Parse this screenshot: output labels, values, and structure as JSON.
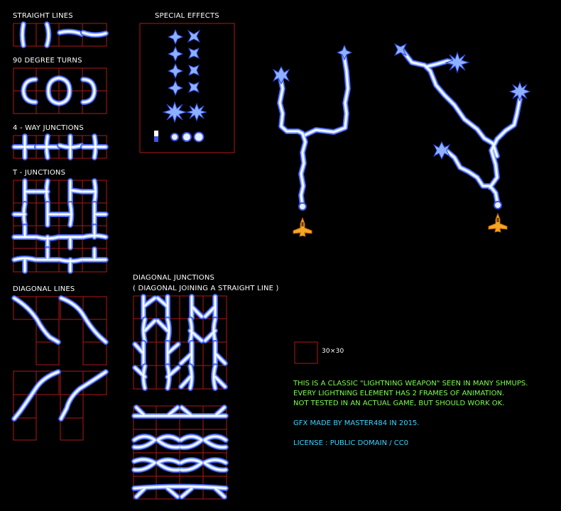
{
  "sections": {
    "straight_lines": "STRAIGHT LINES",
    "turns_90": "90 DEGREE TURNS",
    "four_way": "4 - WAY JUNCTIONS",
    "t_junctions": "T - JUNCTIONS",
    "diagonal_lines": "DIAGONAL LINES",
    "special_effects": "SPECIAL EFFECTS",
    "diagonal_junctions": "DIAGONAL JUNCTIONS",
    "diagonal_junctions_sub": "( DIAGONAL JOINING A STRAIGHT LINE )"
  },
  "legend": {
    "size": "30×30"
  },
  "info": {
    "line1": "THIS IS A CLASSIC \"LIGHTNING WEAPON\" SEEN IN MANY SHMUPS.",
    "line2": "EVERY LIGHTNING ELEMENT HAS 2 FRAMES OF ANIMATION.",
    "line3": "NOT TESTED IN AN ACTUAL GAME, BUT SHOULD WORK OK.",
    "credit": "GFX MADE BY MASTER484 IN 2015.",
    "license": "LICENSE : PUBLIC DOMAIN / CC0"
  },
  "colors": {
    "background": "#000000",
    "grid": "#b01818",
    "bolt_outer": "#3a56e8",
    "bolt_mid": "#a9c4ff",
    "bolt_core": "#ffffff",
    "info_green": "#7cff4c",
    "info_cyan": "#38d4ff",
    "ship": "#f5a623"
  },
  "icons": [
    "star-spark-icon",
    "x-spark-icon",
    "burst-icon",
    "orb-icon",
    "ship-icon"
  ]
}
